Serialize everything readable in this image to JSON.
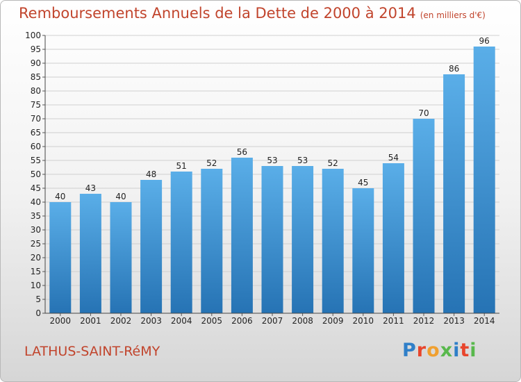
{
  "header": {
    "title": "Remboursements Annuels de la Dette de 2000 à 2014",
    "unit": "(en milliers d'€)"
  },
  "footer": {
    "city": "LATHUS-SAINT-RéMY",
    "brand": "Proxiti"
  },
  "colors": {
    "title": "#c1442c",
    "bar_light": "#5aaee8",
    "bar_dark": "#2673b4",
    "logo_letters": [
      "#2f7fc8",
      "#e8452c",
      "#f0a030",
      "#58b84c",
      "#2f7fc8",
      "#e8452c",
      "#58b84c"
    ]
  },
  "chart_data": {
    "type": "bar",
    "title": "Remboursements Annuels de la Dette de 2000 à 2014",
    "subtitle": "(en milliers d'€)",
    "xlabel": "",
    "ylabel": "",
    "categories": [
      "2000",
      "2001",
      "2002",
      "2003",
      "2004",
      "2005",
      "2006",
      "2007",
      "2008",
      "2009",
      "2010",
      "2011",
      "2012",
      "2013",
      "2014"
    ],
    "values": [
      40,
      43,
      40,
      48,
      51,
      52,
      56,
      53,
      53,
      52,
      45,
      54,
      70,
      86,
      96
    ],
    "ylim": [
      0,
      100
    ],
    "ytick_step": 5,
    "grid": true,
    "data_labels": true
  }
}
